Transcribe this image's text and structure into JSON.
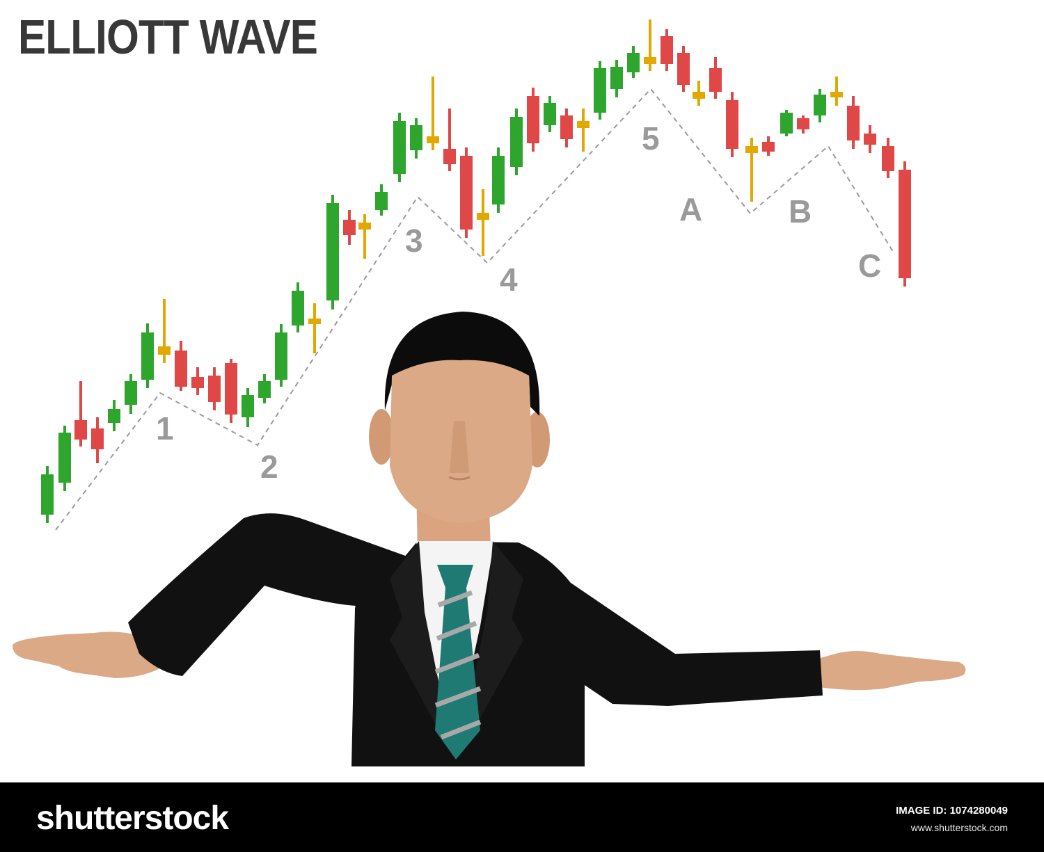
{
  "title": "ELLIOTT WAVE",
  "wave_labels": [
    "1",
    "2",
    "3",
    "4",
    "5",
    "A",
    "B",
    "C"
  ],
  "colors": {
    "bull": "#2ea62e",
    "bear": "#e04848",
    "doji": "#e0a800",
    "label": "#9a9a9a",
    "suit": "#111111",
    "skin": "#dba985",
    "tie": "#1e7a72"
  },
  "footer": {
    "brand": "shutterstock",
    "image_id": "IMAGE ID: 1074280049",
    "url": "www.shutterstock.com"
  }
}
